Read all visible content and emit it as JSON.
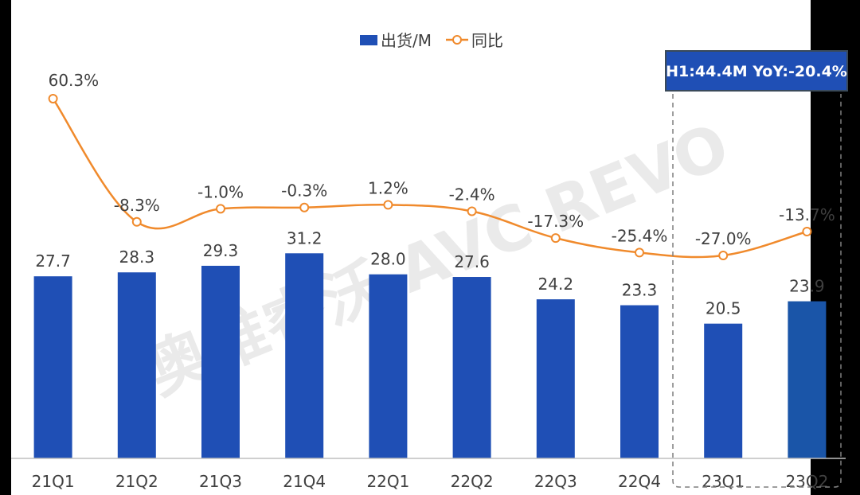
{
  "chart_data": {
    "type": "bar",
    "categories": [
      "21Q1",
      "21Q2",
      "21Q3",
      "21Q4",
      "22Q1",
      "22Q2",
      "22Q3",
      "22Q4",
      "23Q1",
      "23Q2"
    ],
    "series": [
      {
        "name": "出货/M",
        "type": "bar",
        "values": [
          27.7,
          28.3,
          29.3,
          31.2,
          28.0,
          27.6,
          24.2,
          23.3,
          20.5,
          23.9
        ],
        "labels": [
          "27.7",
          "28.3",
          "29.3",
          "31.2",
          "28.0",
          "27.6",
          "24.2",
          "23.3",
          "20.5",
          "23.9"
        ]
      },
      {
        "name": "同比",
        "type": "line",
        "axis": "secondary",
        "values": [
          60.3,
          -8.3,
          -1.0,
          -0.3,
          1.2,
          -2.4,
          -17.3,
          -25.4,
          -27.0,
          -13.7
        ],
        "labels": [
          "60.3%",
          "-8.3%",
          "-1.0%",
          "-0.3%",
          "1.2%",
          "-2.4%",
          "-17.3%",
          "-25.4%",
          "-27.0%",
          "-13.7%"
        ]
      }
    ],
    "ylim": [
      0,
      55
    ],
    "y2lim": [
      -47,
      73
    ],
    "grid": false,
    "legend": "top-center",
    "annotation": {
      "text": "H1:44.4M YoY:-20.4%",
      "categories": [
        "23Q1",
        "23Q2"
      ]
    },
    "watermark": "奥维睿沃 AVC REVO",
    "colors": {
      "bar": "#1F4FB5",
      "bar_last": "#1A55A8",
      "line": "#F08A2C",
      "label": "#404040",
      "annotation_bg": "#1F4FB5",
      "annotation_border": "#3A4A5A",
      "watermark": "#D9D9D9"
    }
  }
}
